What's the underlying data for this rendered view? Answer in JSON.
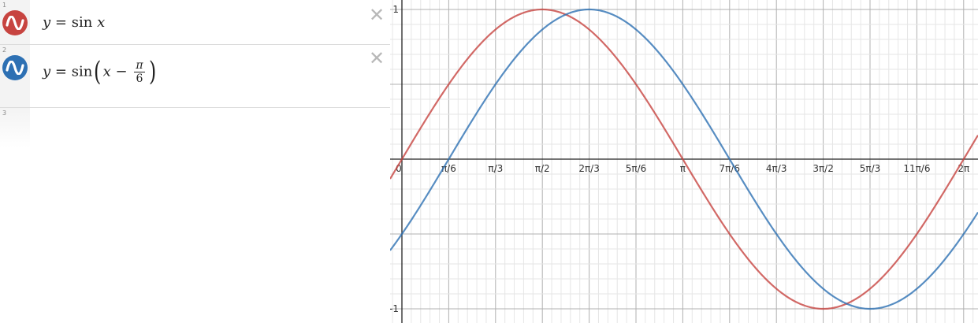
{
  "expressions": [
    {
      "index": "1",
      "color": "#c74440",
      "lhs": "y",
      "eq": "=",
      "func": "sin",
      "arg": "x",
      "delete_label": "✕"
    },
    {
      "index": "2",
      "color": "#2d70b3",
      "lhs": "y",
      "eq": "=",
      "func": "sin",
      "arg_var": "x",
      "minus": "−",
      "frac_num": "π",
      "frac_den": "6",
      "delete_label": "✕"
    },
    {
      "index": "3"
    }
  ],
  "graph": {
    "x_ticks": [
      "0",
      "π/6",
      "π/3",
      "π/2",
      "2π/3",
      "5π/6",
      "π",
      "7π/6",
      "4π/3",
      "3π/2",
      "5π/3",
      "11π/6",
      "2π"
    ],
    "y_ticks": [
      "1",
      "-1"
    ],
    "x_range_radians": [
      -0.1,
      6.33
    ],
    "y_range": [
      -1.08,
      1.08
    ],
    "grid": true,
    "curves": [
      {
        "name": "y = sin x",
        "color": "#c74440",
        "phase_shift": 0
      },
      {
        "name": "y = sin(x − π/6)",
        "color": "#2d70b3",
        "phase_shift": 0.5235987756
      }
    ]
  }
}
